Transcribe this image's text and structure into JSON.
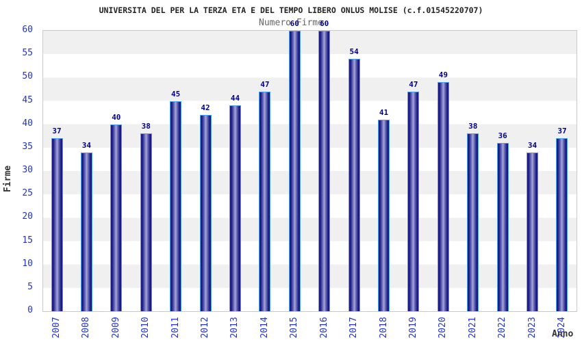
{
  "chart_data": {
    "type": "bar",
    "title": "UNIVERSITA DEL PER LA TERZA ETA E DEL TEMPO LIBERO ONLUS MOLISE (c.f.01545220707)",
    "subtitle": "Numero Firme",
    "xlabel": "Anno",
    "ylabel": "Firme",
    "categories": [
      "2007",
      "2008",
      "2009",
      "2010",
      "2011",
      "2012",
      "2013",
      "2014",
      "2015",
      "2016",
      "2017",
      "2018",
      "2019",
      "2020",
      "2021",
      "2022",
      "2023",
      "2024"
    ],
    "values": [
      37,
      34,
      40,
      38,
      45,
      42,
      44,
      47,
      60,
      60,
      54,
      41,
      47,
      49,
      38,
      36,
      34,
      37
    ],
    "ylim": [
      0,
      60
    ],
    "ytick_step": 5,
    "grid": "horizontal-bands-alternating",
    "legend": "none",
    "bar_value_labels_shown": true
  },
  "colors": {
    "bar_fill_dark": "#14147a",
    "bar_fill_light": "#a9a9da",
    "bar_border": "#4da1f5",
    "value_label": "#00008b",
    "axis_tick_label": "#2233cc",
    "axis_title": "#333333",
    "title_text": "#222222",
    "subtitle_text": "#666666",
    "band_gray": "#f0f0f0",
    "band_white": "#ffffff",
    "plot_border": "#c9c9c9",
    "page_background": "#ffffff"
  }
}
